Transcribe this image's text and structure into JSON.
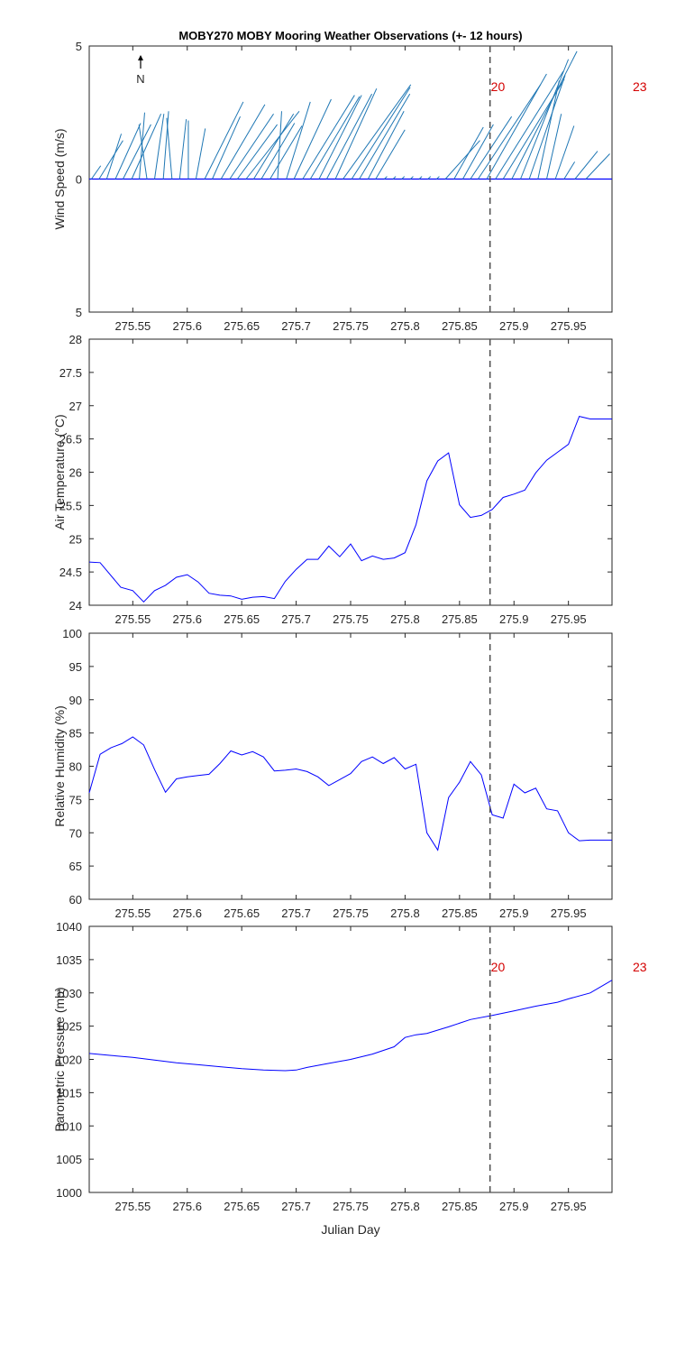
{
  "chart_data": {
    "title": "MOBY270 MOBY Mooring Weather Observations (+- 12 hours)",
    "x_label": "Julian Day",
    "x_range": [
      275.51,
      275.99
    ],
    "x_ticks": [
      275.55,
      275.6,
      275.65,
      275.7,
      275.75,
      275.8,
      275.85,
      275.9,
      275.95
    ],
    "x_tick_labels": [
      "275.55",
      "275.6",
      "275.65",
      "275.7",
      "275.75",
      "275.8",
      "275.85",
      "275.9",
      "275.95"
    ],
    "marker_x": 275.878,
    "line_color": "#0000ff",
    "stick_color": "#1f77b4",
    "annotation_color": "#d40000",
    "panels": [
      {
        "id": "wind",
        "type": "stick",
        "ylabel": "Wind Speed (m/s)",
        "ylim": [
          -5,
          5
        ],
        "y_ticks": [
          5,
          0,
          -5
        ],
        "y_tick_labels": [
          "5",
          "0",
          "5"
        ],
        "north_label": "N",
        "annotations": [
          "20",
          "23"
        ],
        "sticks": [
          {
            "x": 275.512,
            "u": 0.35,
            "v": 0.5
          },
          {
            "x": 275.519,
            "u": 0.9,
            "v": 1.45
          },
          {
            "x": 275.526,
            "u": 0.55,
            "v": 1.7
          },
          {
            "x": 275.534,
            "u": 0.95,
            "v": 2.1
          },
          {
            "x": 275.541,
            "u": 1.05,
            "v": 2.05
          },
          {
            "x": 275.549,
            "u": 1.1,
            "v": 2.45
          },
          {
            "x": 275.556,
            "u": 0.2,
            "v": 2.5
          },
          {
            "x": 275.563,
            "u": -0.3,
            "v": 2.05
          },
          {
            "x": 275.57,
            "u": 0.35,
            "v": 2.45
          },
          {
            "x": 275.578,
            "u": 0.2,
            "v": 2.55
          },
          {
            "x": 275.586,
            "u": -0.2,
            "v": 2.3
          },
          {
            "x": 275.593,
            "u": 0.25,
            "v": 2.25
          },
          {
            "x": 275.601,
            "u": 0.0,
            "v": 2.2
          },
          {
            "x": 275.608,
            "u": 0.35,
            "v": 1.9
          },
          {
            "x": 275.616,
            "u": 1.45,
            "v": 2.9
          },
          {
            "x": 275.623,
            "u": 1.05,
            "v": 2.35
          },
          {
            "x": 275.631,
            "u": 1.65,
            "v": 2.8
          },
          {
            "x": 275.639,
            "u": 1.65,
            "v": 2.45
          },
          {
            "x": 275.646,
            "u": 1.5,
            "v": 2.05
          },
          {
            "x": 275.654,
            "u": 2.0,
            "v": 2.55
          },
          {
            "x": 275.661,
            "u": 1.5,
            "v": 2.45
          },
          {
            "x": 275.668,
            "u": 1.25,
            "v": 2.1
          },
          {
            "x": 275.676,
            "u": 1.2,
            "v": 2.0
          },
          {
            "x": 275.683,
            "u": 0.15,
            "v": 2.55
          },
          {
            "x": 275.691,
            "u": 0.9,
            "v": 2.9
          },
          {
            "x": 275.698,
            "u": 1.4,
            "v": 3.0
          },
          {
            "x": 275.706,
            "u": 1.95,
            "v": 3.15
          },
          {
            "x": 275.713,
            "u": 1.85,
            "v": 3.1
          },
          {
            "x": 275.721,
            "u": 1.6,
            "v": 3.15
          },
          {
            "x": 275.728,
            "u": 1.7,
            "v": 3.2
          },
          {
            "x": 275.736,
            "u": 1.55,
            "v": 3.4
          },
          {
            "x": 275.743,
            "u": 2.55,
            "v": 3.55
          },
          {
            "x": 275.751,
            "u": 2.2,
            "v": 3.45
          },
          {
            "x": 275.758,
            "u": 1.9,
            "v": 3.2
          },
          {
            "x": 275.766,
            "u": 1.35,
            "v": 2.55
          },
          {
            "x": 275.773,
            "u": 1.1,
            "v": 1.85
          },
          {
            "x": 275.781,
            "u": 0.1,
            "v": 0.1
          },
          {
            "x": 275.789,
            "u": 0.1,
            "v": 0.1
          },
          {
            "x": 275.797,
            "u": 0.1,
            "v": 0.1
          },
          {
            "x": 275.805,
            "u": 0.1,
            "v": 0.1
          },
          {
            "x": 275.813,
            "u": 0.1,
            "v": 0.1
          },
          {
            "x": 275.821,
            "u": 0.1,
            "v": 0.1
          },
          {
            "x": 275.829,
            "u": 0.1,
            "v": 0.1
          },
          {
            "x": 275.837,
            "u": 1.3,
            "v": 1.45
          },
          {
            "x": 275.845,
            "u": 1.1,
            "v": 1.95
          },
          {
            "x": 275.853,
            "u": 1.15,
            "v": 2.05
          },
          {
            "x": 275.86,
            "u": 1.55,
            "v": 2.35
          },
          {
            "x": 275.867,
            "u": 2.35,
            "v": 3.55
          },
          {
            "x": 275.875,
            "u": 2.25,
            "v": 3.95
          },
          {
            "x": 275.883,
            "u": 2.55,
            "v": 4.05
          },
          {
            "x": 275.89,
            "u": 2.3,
            "v": 3.75
          },
          {
            "x": 275.898,
            "u": 2.45,
            "v": 4.8
          },
          {
            "x": 275.906,
            "u": 1.8,
            "v": 4.5
          },
          {
            "x": 275.914,
            "u": 1.35,
            "v": 3.9
          },
          {
            "x": 275.922,
            "u": 0.8,
            "v": 3.7
          },
          {
            "x": 275.93,
            "u": 0.55,
            "v": 2.45
          },
          {
            "x": 275.938,
            "u": 0.7,
            "v": 2.0
          },
          {
            "x": 275.946,
            "u": 0.4,
            "v": 0.65
          },
          {
            "x": 275.956,
            "u": 0.85,
            "v": 1.05
          },
          {
            "x": 275.966,
            "u": 0.9,
            "v": 0.95
          }
        ]
      },
      {
        "id": "air_temperature",
        "type": "line",
        "ylabel": "Air Temperature (°C)",
        "ylim": [
          24,
          28
        ],
        "y_ticks": [
          24,
          24.5,
          25,
          25.5,
          26,
          26.5,
          27,
          27.5,
          28
        ],
        "y_tick_labels": [
          "24",
          "24.5",
          "25",
          "25.5",
          "26",
          "26.5",
          "27",
          "27.5",
          "28"
        ],
        "x": [
          275.51,
          275.52,
          275.539,
          275.55,
          275.56,
          275.57,
          275.58,
          275.59,
          275.6,
          275.61,
          275.62,
          275.63,
          275.64,
          275.65,
          275.66,
          275.67,
          275.68,
          275.69,
          275.7,
          275.71,
          275.72,
          275.73,
          275.74,
          275.75,
          275.76,
          275.77,
          275.78,
          275.79,
          275.8,
          275.81,
          275.82,
          275.83,
          275.84,
          275.85,
          275.86,
          275.87,
          275.88,
          275.89,
          275.9,
          275.91,
          275.92,
          275.93,
          275.94,
          275.95,
          275.96,
          275.97,
          275.98,
          275.99
        ],
        "y": [
          24.65,
          24.64,
          24.27,
          24.22,
          24.05,
          24.22,
          24.3,
          24.42,
          24.46,
          24.35,
          24.18,
          24.15,
          24.14,
          24.09,
          24.12,
          24.13,
          24.1,
          24.36,
          24.54,
          24.69,
          24.69,
          24.89,
          24.73,
          24.92,
          24.67,
          24.74,
          24.69,
          24.71,
          24.79,
          25.21,
          25.87,
          26.17,
          26.29,
          25.51,
          25.32,
          25.35,
          25.44,
          25.62,
          25.67,
          25.73,
          25.99,
          26.18,
          26.3,
          26.42,
          26.84,
          26.8,
          26.8,
          26.8
        ]
      },
      {
        "id": "relative_humidity",
        "type": "line",
        "ylabel": "Relative Humidity (%)",
        "ylim": [
          60,
          100
        ],
        "y_ticks": [
          60,
          65,
          70,
          75,
          80,
          85,
          90,
          95,
          100
        ],
        "y_tick_labels": [
          "60",
          "65",
          "70",
          "75",
          "80",
          "85",
          "90",
          "95",
          "100"
        ],
        "x": [
          275.51,
          275.52,
          275.53,
          275.54,
          275.55,
          275.56,
          275.57,
          275.58,
          275.59,
          275.6,
          275.61,
          275.62,
          275.63,
          275.64,
          275.65,
          275.66,
          275.67,
          275.68,
          275.69,
          275.7,
          275.71,
          275.72,
          275.73,
          275.74,
          275.75,
          275.76,
          275.77,
          275.78,
          275.79,
          275.8,
          275.81,
          275.82,
          275.83,
          275.84,
          275.85,
          275.86,
          275.87,
          275.88,
          275.89,
          275.9,
          275.91,
          275.92,
          275.93,
          275.94,
          275.95,
          275.96,
          275.97,
          275.98,
          275.99
        ],
        "y": [
          76.0,
          81.8,
          82.8,
          83.4,
          84.4,
          83.2,
          79.5,
          76.1,
          78.1,
          78.4,
          78.6,
          78.8,
          80.4,
          82.3,
          81.7,
          82.2,
          81.4,
          79.3,
          79.4,
          79.6,
          79.2,
          78.4,
          77.1,
          78.0,
          78.9,
          80.7,
          81.4,
          80.4,
          81.3,
          79.6,
          80.3,
          70.0,
          67.4,
          75.3,
          77.6,
          80.7,
          78.7,
          72.7,
          72.2,
          77.3,
          76.0,
          76.7,
          73.6,
          73.3,
          70.0,
          68.8,
          68.9,
          68.9,
          68.9
        ]
      },
      {
        "id": "barometric_pressure",
        "type": "line",
        "ylabel": "Barometric Pressure (mb)",
        "ylim": [
          1000,
          1040
        ],
        "y_ticks": [
          1000,
          1005,
          1010,
          1015,
          1020,
          1025,
          1030,
          1035,
          1040
        ],
        "y_tick_labels": [
          "1000",
          "1005",
          "1010",
          "1015",
          "1020",
          "1025",
          "1030",
          "1035",
          "1040"
        ],
        "annotations": [
          "20",
          "23"
        ],
        "x": [
          275.51,
          275.53,
          275.55,
          275.57,
          275.59,
          275.61,
          275.63,
          275.65,
          275.67,
          275.69,
          275.7,
          275.71,
          275.73,
          275.75,
          275.77,
          275.79,
          275.8,
          275.81,
          275.82,
          275.84,
          275.86,
          275.88,
          275.9,
          275.92,
          275.94,
          275.95,
          275.97,
          275.99
        ],
        "y": [
          1020.9,
          1020.6,
          1020.3,
          1019.9,
          1019.5,
          1019.2,
          1018.9,
          1018.6,
          1018.4,
          1018.3,
          1018.4,
          1018.8,
          1019.4,
          1020.0,
          1020.8,
          1021.9,
          1023.3,
          1023.7,
          1023.9,
          1024.9,
          1026.0,
          1026.6,
          1027.3,
          1028.0,
          1028.6,
          1029.1,
          1030.0,
          1031.9
        ]
      }
    ]
  }
}
